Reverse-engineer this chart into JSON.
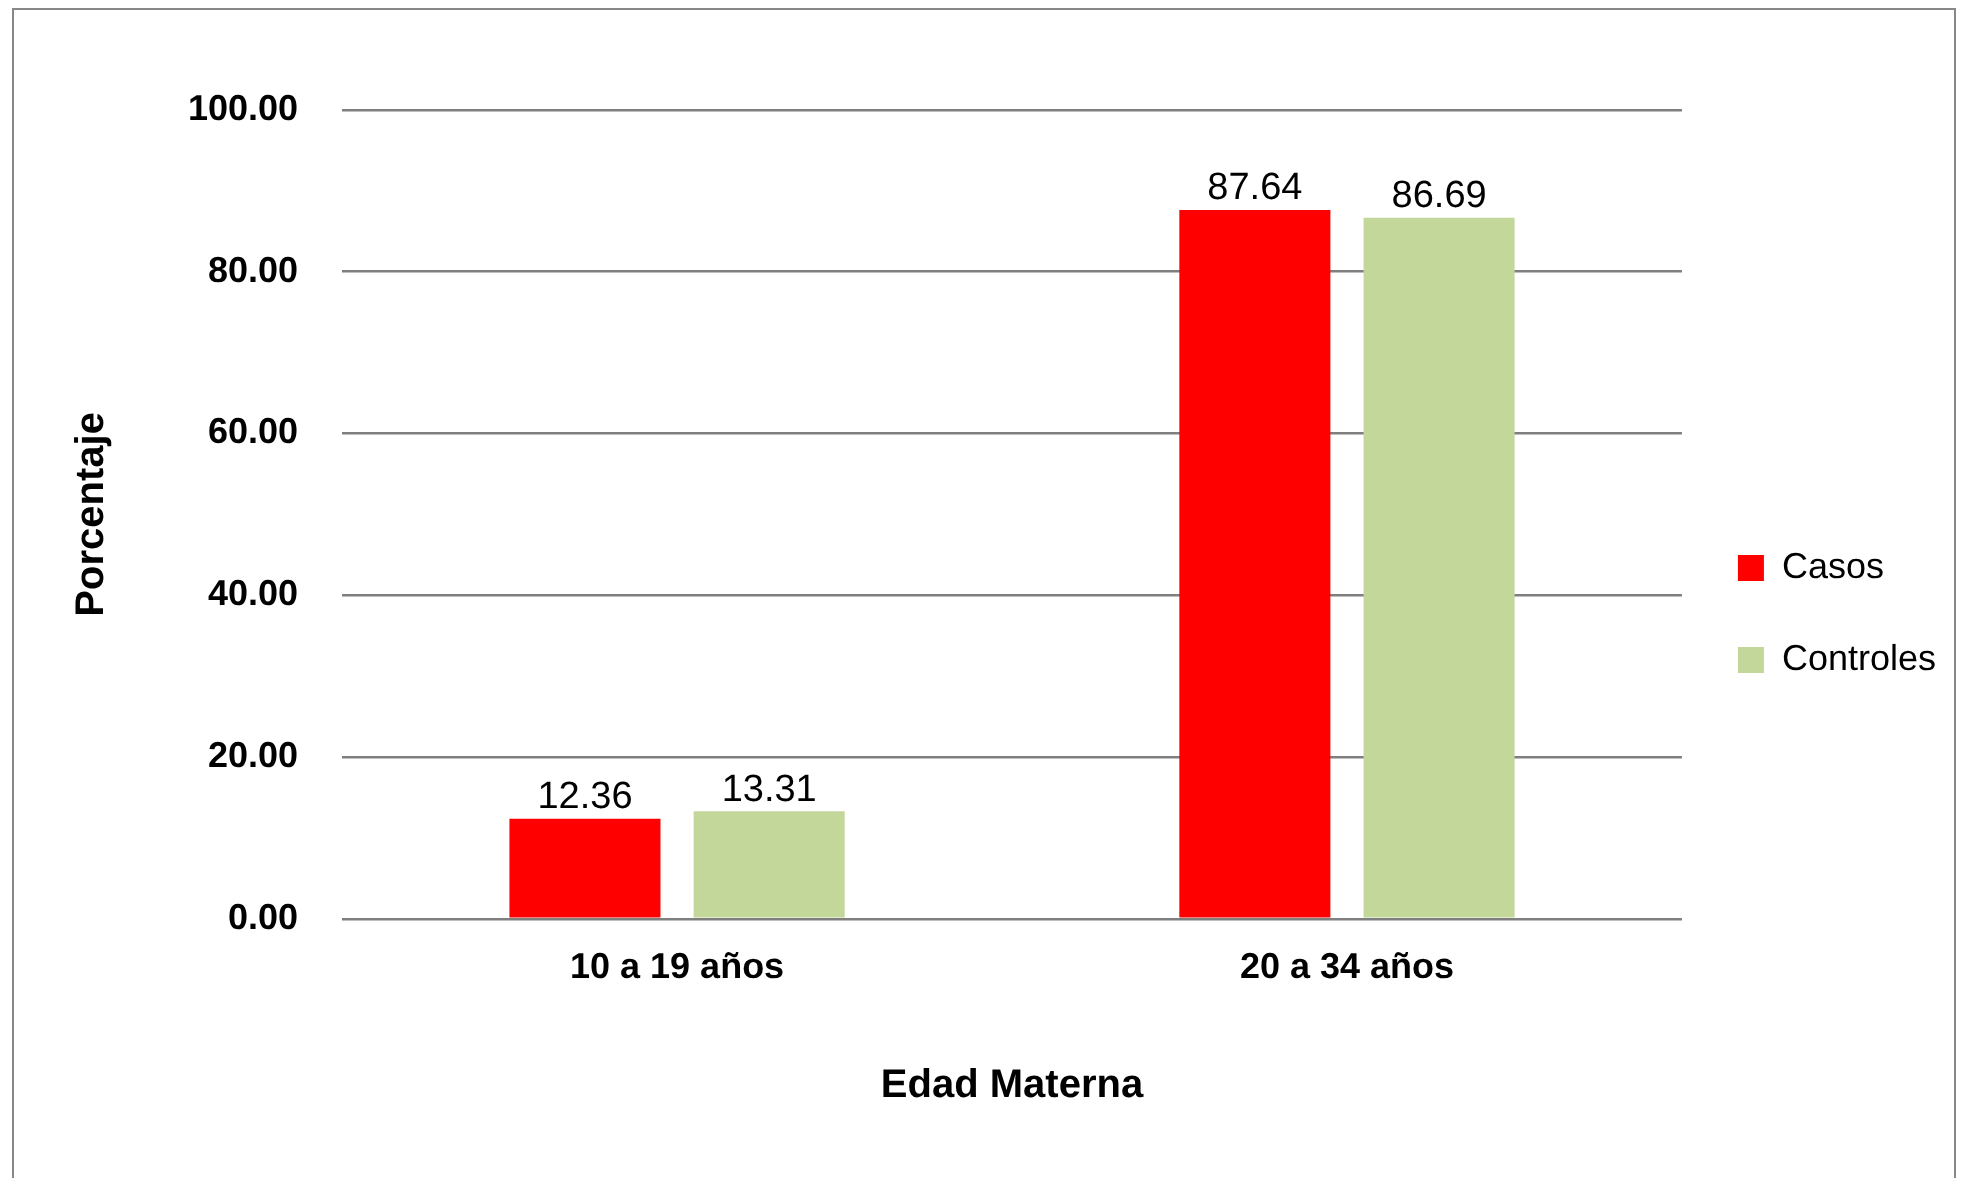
{
  "chart_data": {
    "type": "bar",
    "xlabel": "Edad Materna",
    "ylabel": "Porcentaje",
    "categories": [
      "10 a 19 años",
      "20 a 34 años"
    ],
    "series": [
      {
        "name": "Casos",
        "color": "#ff0000",
        "values": [
          12.36,
          87.64
        ]
      },
      {
        "name": "Controles",
        "color": "#c4d79b",
        "values": [
          13.31,
          86.69
        ]
      }
    ],
    "ylim": [
      0,
      100
    ],
    "yticks": [
      {
        "value": 0,
        "label": "0.00"
      },
      {
        "value": 20,
        "label": "20.00"
      },
      {
        "value": 40,
        "label": "40.00"
      },
      {
        "value": 60,
        "label": "60.00"
      },
      {
        "value": 80,
        "label": "80.00"
      },
      {
        "value": 100,
        "label": "100.00"
      }
    ],
    "grid": "y",
    "legend": "right",
    "data_labels": true
  }
}
